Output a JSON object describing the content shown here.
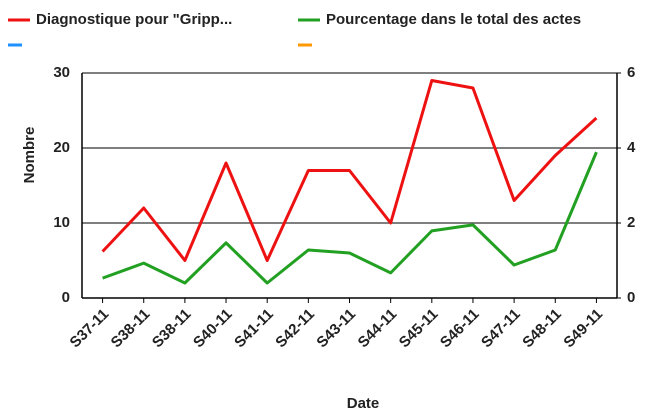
{
  "chart_data": {
    "type": "line",
    "categories": [
      "S37-11",
      "S38-11",
      "S38-11",
      "S40-11",
      "S41-11",
      "S42-11",
      "S43-11",
      "S44-11",
      "S45-11",
      "S46-11",
      "S47-11",
      "S48-11",
      "S49-11"
    ],
    "series": [
      {
        "name": "Diagnostique pour \"Gripp...",
        "color": "#ee1111",
        "values": [
          6.2,
          12,
          5,
          18,
          5,
          17,
          17,
          10,
          29,
          28,
          13,
          19,
          24
        ]
      },
      {
        "name": "Pourcentage dans le total des actes",
        "color": "#22a022",
        "axis": "y2",
        "values": [
          0.53,
          0.93,
          0.4,
          1.47,
          0.4,
          1.28,
          1.2,
          0.67,
          1.79,
          1.95,
          0.88,
          1.28,
          3.89
        ]
      }
    ],
    "ylabel": "Nombre",
    "xlabel": "Date",
    "ylim": [
      0,
      30
    ],
    "yticks": [
      0,
      10,
      20,
      30
    ],
    "y2lim": [
      0,
      6
    ],
    "y2ticks": [
      0,
      2,
      4,
      6
    ],
    "grid": true
  }
}
